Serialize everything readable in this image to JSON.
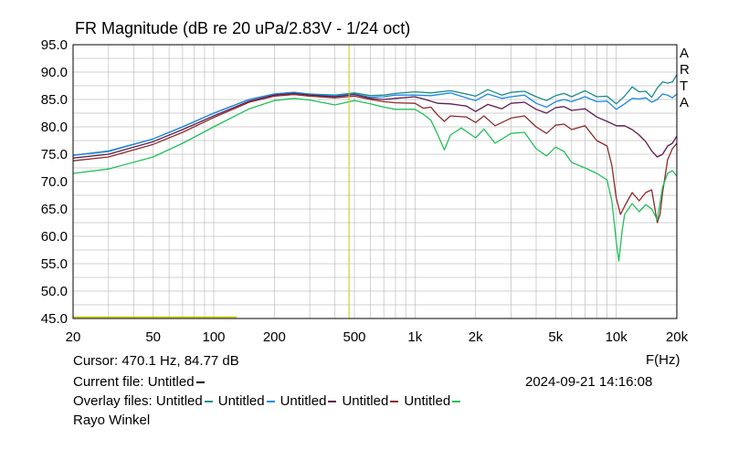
{
  "title": "FR Magnitude (dB re 20 uPa/2.83V - 1/24 oct)",
  "brand_letters": [
    "A",
    "R",
    "T",
    "A"
  ],
  "x_axis_label": "F(Hz)",
  "cursor_text": "Cursor: 470.1 Hz, 84.77 dB",
  "current_file_label": "Current file: Untitled",
  "overlay_label": "Overlay files:",
  "overlay_files": [
    {
      "name": "Untitled",
      "color": "#1a8b8b"
    },
    {
      "name": "Untitled",
      "color": "#1e88e5"
    },
    {
      "name": "Untitled",
      "color": "#5e1d4e"
    },
    {
      "name": "Untitled",
      "color": "#8b2c2c"
    },
    {
      "name": "Untitled",
      "color": "#22c05a"
    }
  ],
  "datetime": "2024-09-21  14:16:08",
  "author": "Rayo Winkel",
  "colors": {
    "cursor": "#c8c800",
    "grid": "#c0c0c0",
    "frame": "#000000"
  },
  "chart_data": {
    "type": "line",
    "title": "FR Magnitude (dB re 20 uPa/2.83V - 1/24 oct)",
    "xlabel": "F(Hz)",
    "ylabel": "",
    "x_scale": "log",
    "xlim": [
      20,
      20000
    ],
    "ylim": [
      45,
      95
    ],
    "grid": true,
    "x_tick_labels": [
      {
        "v": 20,
        "t": "20"
      },
      {
        "v": 50,
        "t": "50"
      },
      {
        "v": 100,
        "t": "100"
      },
      {
        "v": 200,
        "t": "200"
      },
      {
        "v": 500,
        "t": "500"
      },
      {
        "v": 1000,
        "t": "1k"
      },
      {
        "v": 2000,
        "t": "2k"
      },
      {
        "v": 5000,
        "t": "5k"
      },
      {
        "v": 10000,
        "t": "10k"
      },
      {
        "v": 20000,
        "t": "20k"
      }
    ],
    "y_tick_labels": [
      "45.0",
      "50.0",
      "55.0",
      "60.0",
      "65.0",
      "70.0",
      "75.0",
      "80.0",
      "85.0",
      "90.0",
      "95.0"
    ],
    "cursor_x": 470.1,
    "series": [
      {
        "color": "#1a8b8b",
        "points": [
          [
            20,
            74.8
          ],
          [
            30,
            75.5
          ],
          [
            50,
            77.8
          ],
          [
            70,
            80
          ],
          [
            100,
            82.5
          ],
          [
            150,
            85
          ],
          [
            200,
            86
          ],
          [
            250,
            86.3
          ],
          [
            300,
            86
          ],
          [
            400,
            85.8
          ],
          [
            500,
            86.2
          ],
          [
            600,
            85.7
          ],
          [
            700,
            85.8
          ],
          [
            800,
            86.1
          ],
          [
            1000,
            86.4
          ],
          [
            1200,
            86.2
          ],
          [
            1500,
            86.6
          ],
          [
            1800,
            86
          ],
          [
            2000,
            85.6
          ],
          [
            2300,
            86.8
          ],
          [
            2700,
            85.8
          ],
          [
            3000,
            86.3
          ],
          [
            3500,
            86.5
          ],
          [
            4000,
            85.5
          ],
          [
            4500,
            84.8
          ],
          [
            5000,
            85.7
          ],
          [
            5500,
            86.1
          ],
          [
            6000,
            85.5
          ],
          [
            7000,
            86.6
          ],
          [
            8000,
            85.5
          ],
          [
            9000,
            85.6
          ],
          [
            10000,
            84.2
          ],
          [
            11000,
            85.6
          ],
          [
            12000,
            87.3
          ],
          [
            13000,
            86.4
          ],
          [
            14000,
            86.5
          ],
          [
            15000,
            85.4
          ],
          [
            16000,
            87.1
          ],
          [
            17000,
            88.2
          ],
          [
            18000,
            88
          ],
          [
            19000,
            88.2
          ],
          [
            20000,
            89.5
          ]
        ]
      },
      {
        "color": "#1e88e5",
        "points": [
          [
            20,
            74.8
          ],
          [
            30,
            75.6
          ],
          [
            50,
            77.8
          ],
          [
            70,
            80
          ],
          [
            100,
            82.5
          ],
          [
            150,
            85
          ],
          [
            200,
            86
          ],
          [
            250,
            86.3
          ],
          [
            300,
            85.9
          ],
          [
            400,
            85.7
          ],
          [
            500,
            86
          ],
          [
            600,
            85.4
          ],
          [
            700,
            85.5
          ],
          [
            800,
            85.8
          ],
          [
            1000,
            85.8
          ],
          [
            1200,
            85.7
          ],
          [
            1500,
            86.2
          ],
          [
            1800,
            85.3
          ],
          [
            2000,
            84.8
          ],
          [
            2300,
            86
          ],
          [
            2700,
            85.2
          ],
          [
            3000,
            85.5
          ],
          [
            3500,
            85.8
          ],
          [
            4000,
            84.3
          ],
          [
            4500,
            83.6
          ],
          [
            5000,
            84.6
          ],
          [
            5500,
            85
          ],
          [
            6000,
            84.6
          ],
          [
            7000,
            85.5
          ],
          [
            8000,
            84.6
          ],
          [
            9000,
            84.7
          ],
          [
            10000,
            83.2
          ],
          [
            11000,
            84.2
          ],
          [
            12000,
            85.2
          ],
          [
            13000,
            85.1
          ],
          [
            14000,
            85.3
          ],
          [
            15000,
            84.5
          ],
          [
            16000,
            85
          ],
          [
            17000,
            86
          ],
          [
            18000,
            85.8
          ],
          [
            19000,
            85.3
          ],
          [
            20000,
            86
          ]
        ]
      },
      {
        "color": "#5e1d4e",
        "points": [
          [
            20,
            74.3
          ],
          [
            30,
            75
          ],
          [
            50,
            77.3
          ],
          [
            70,
            79.5
          ],
          [
            100,
            82
          ],
          [
            150,
            84.7
          ],
          [
            200,
            85.8
          ],
          [
            250,
            86.1
          ],
          [
            300,
            85.8
          ],
          [
            400,
            85.5
          ],
          [
            500,
            85.9
          ],
          [
            600,
            85.2
          ],
          [
            700,
            85
          ],
          [
            800,
            85.2
          ],
          [
            1000,
            85.5
          ],
          [
            1100,
            85.1
          ],
          [
            1300,
            84.3
          ],
          [
            1500,
            84.2
          ],
          [
            1800,
            83.8
          ],
          [
            2000,
            82.8
          ],
          [
            2300,
            84.1
          ],
          [
            2700,
            83.3
          ],
          [
            3000,
            84.3
          ],
          [
            3500,
            84.5
          ],
          [
            4000,
            83.2
          ],
          [
            4500,
            82.5
          ],
          [
            5000,
            83.5
          ],
          [
            5500,
            83.7
          ],
          [
            6000,
            83
          ],
          [
            7000,
            83.3
          ],
          [
            8000,
            81.8
          ],
          [
            9000,
            81
          ],
          [
            10000,
            80.2
          ],
          [
            11000,
            80.2
          ],
          [
            12000,
            79.5
          ],
          [
            13000,
            78.5
          ],
          [
            14000,
            77.3
          ],
          [
            15000,
            75.6
          ],
          [
            16000,
            74.5
          ],
          [
            17000,
            75
          ],
          [
            18000,
            76.5
          ],
          [
            19000,
            77
          ],
          [
            20000,
            78.3
          ]
        ]
      },
      {
        "color": "#8b2c2c",
        "points": [
          [
            20,
            73.8
          ],
          [
            30,
            74.5
          ],
          [
            50,
            76.8
          ],
          [
            70,
            79
          ],
          [
            100,
            81.7
          ],
          [
            150,
            84.5
          ],
          [
            200,
            85.6
          ],
          [
            250,
            85.9
          ],
          [
            300,
            85.6
          ],
          [
            400,
            85.3
          ],
          [
            500,
            85.6
          ],
          [
            600,
            85
          ],
          [
            700,
            84.6
          ],
          [
            800,
            84.4
          ],
          [
            1000,
            84.3
          ],
          [
            1100,
            83.4
          ],
          [
            1200,
            83.6
          ],
          [
            1300,
            82.1
          ],
          [
            1400,
            81
          ],
          [
            1500,
            82
          ],
          [
            1800,
            81.8
          ],
          [
            2000,
            80.8
          ],
          [
            2200,
            82
          ],
          [
            2500,
            80.2
          ],
          [
            3000,
            81.6
          ],
          [
            3500,
            82
          ],
          [
            4000,
            80
          ],
          [
            4500,
            78.8
          ],
          [
            5000,
            80.3
          ],
          [
            5500,
            80.5
          ],
          [
            6000,
            79.5
          ],
          [
            7000,
            80.2
          ],
          [
            8000,
            77.5
          ],
          [
            9000,
            76.5
          ],
          [
            9500,
            73
          ],
          [
            10000,
            67
          ],
          [
            10500,
            64
          ],
          [
            11000,
            65.5
          ],
          [
            12000,
            68
          ],
          [
            13000,
            66.5
          ],
          [
            14000,
            68
          ],
          [
            15000,
            68.5
          ],
          [
            16000,
            62.5
          ],
          [
            16500,
            64
          ],
          [
            17000,
            68
          ],
          [
            18000,
            74
          ],
          [
            19000,
            76
          ],
          [
            20000,
            77
          ]
        ]
      },
      {
        "color": "#22c05a",
        "points": [
          [
            20,
            71.5
          ],
          [
            30,
            72.3
          ],
          [
            50,
            74.5
          ],
          [
            70,
            77
          ],
          [
            100,
            80
          ],
          [
            150,
            83.3
          ],
          [
            200,
            84.8
          ],
          [
            250,
            85.2
          ],
          [
            300,
            84.9
          ],
          [
            400,
            84
          ],
          [
            500,
            84.8
          ],
          [
            600,
            84.2
          ],
          [
            700,
            83.6
          ],
          [
            800,
            83.2
          ],
          [
            1000,
            83.2
          ],
          [
            1100,
            82.3
          ],
          [
            1200,
            81.2
          ],
          [
            1300,
            78.5
          ],
          [
            1400,
            75.8
          ],
          [
            1500,
            78.5
          ],
          [
            1700,
            79.8
          ],
          [
            2000,
            78
          ],
          [
            2200,
            79.6
          ],
          [
            2500,
            77
          ],
          [
            3000,
            78.8
          ],
          [
            3500,
            79
          ],
          [
            4000,
            76
          ],
          [
            4500,
            74.7
          ],
          [
            5000,
            76.3
          ],
          [
            5500,
            75.5
          ],
          [
            6000,
            73.5
          ],
          [
            7000,
            72.5
          ],
          [
            8000,
            71.5
          ],
          [
            9000,
            70.3
          ],
          [
            9500,
            66.5
          ],
          [
            10000,
            59
          ],
          [
            10300,
            55.5
          ],
          [
            10700,
            61
          ],
          [
            11000,
            64
          ],
          [
            12000,
            66
          ],
          [
            13000,
            64.5
          ],
          [
            14000,
            65.8
          ],
          [
            15000,
            65
          ],
          [
            16000,
            63
          ],
          [
            17000,
            69
          ],
          [
            18000,
            71.5
          ],
          [
            19000,
            72
          ],
          [
            20000,
            71
          ]
        ]
      }
    ]
  }
}
